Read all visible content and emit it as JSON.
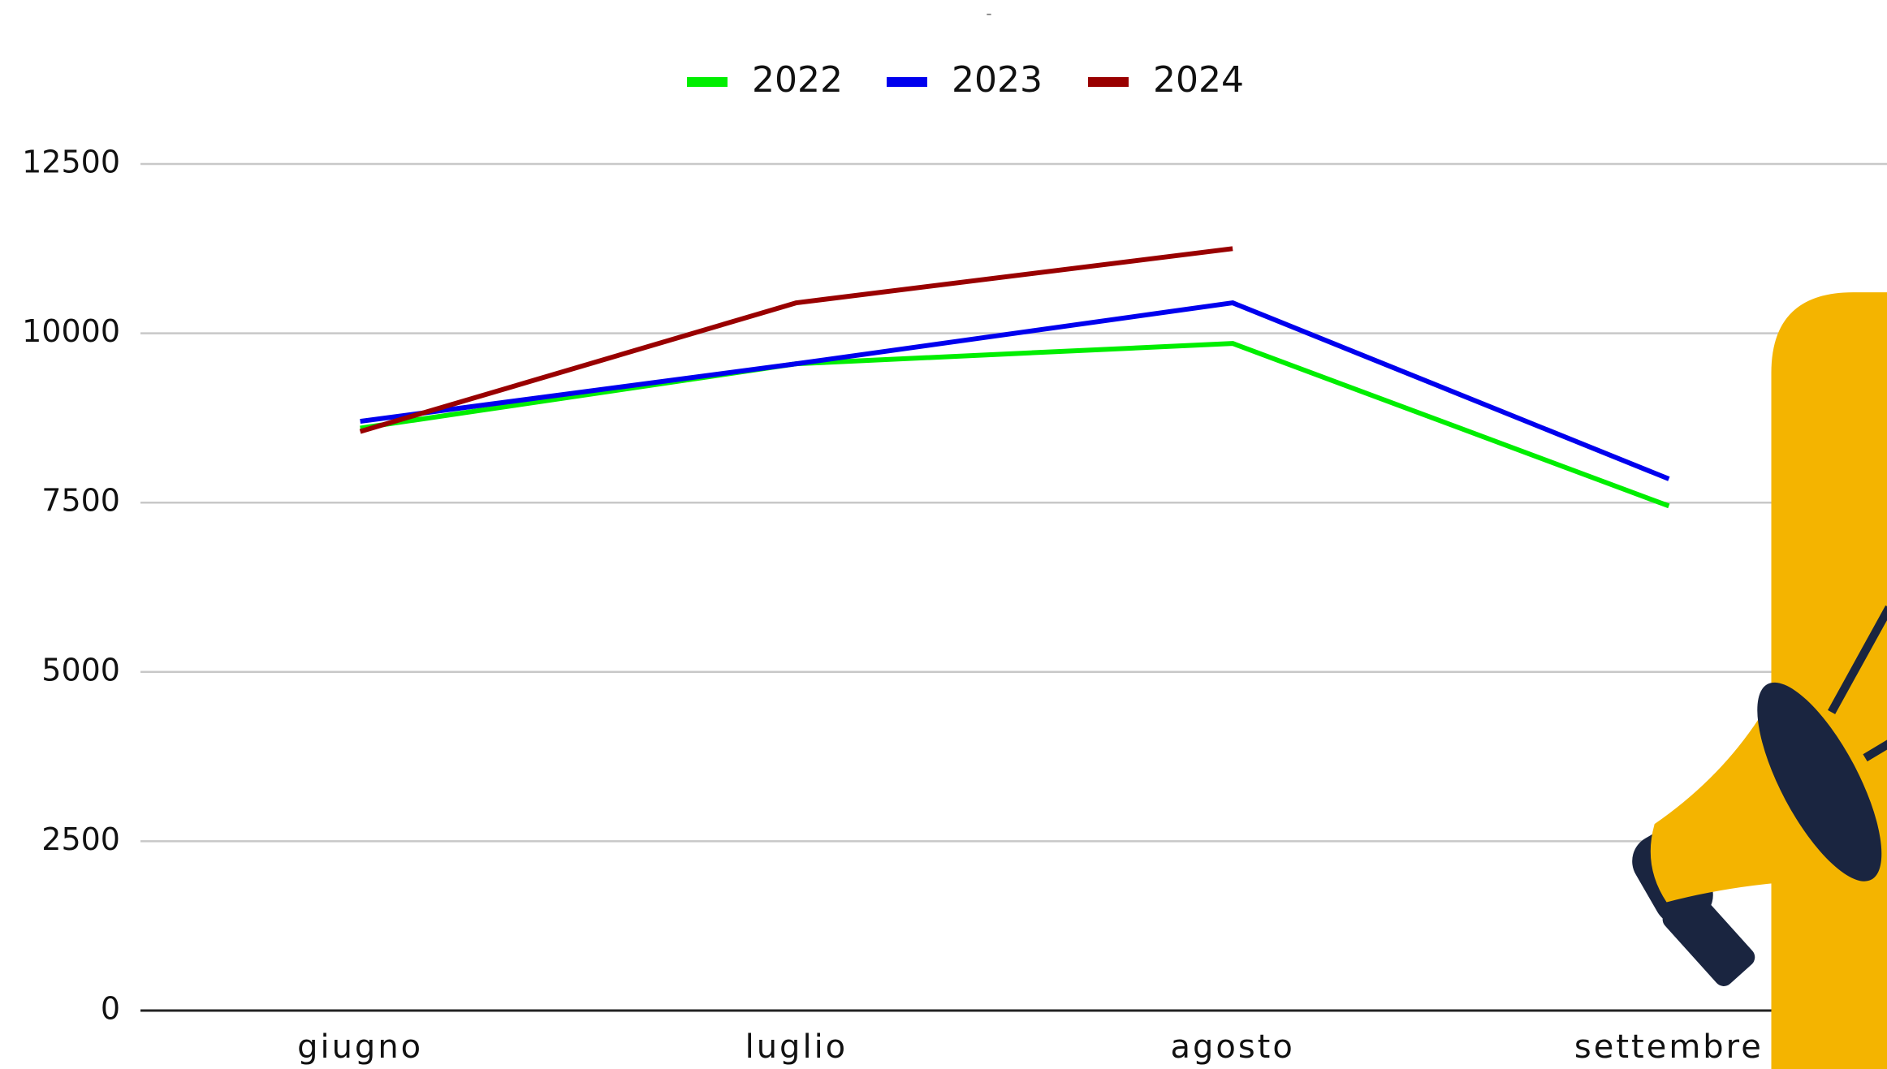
{
  "chart_data": {
    "type": "line",
    "title": "-",
    "categories": [
      "giugno",
      "luglio",
      "agosto",
      "settembre"
    ],
    "series": [
      {
        "name": "2022",
        "color": "#00ee00",
        "values": [
          8600,
          9550,
          9850,
          7450
        ]
      },
      {
        "name": "2023",
        "color": "#0000ee",
        "values": [
          8700,
          9550,
          10450,
          7850
        ]
      },
      {
        "name": "2024",
        "color": "#990000",
        "values": [
          8550,
          10450,
          11250,
          null
        ]
      }
    ],
    "ylim": [
      0,
      12500
    ],
    "yticks": [
      0,
      2500,
      5000,
      7500,
      10000,
      12500
    ],
    "grid": true
  }
}
